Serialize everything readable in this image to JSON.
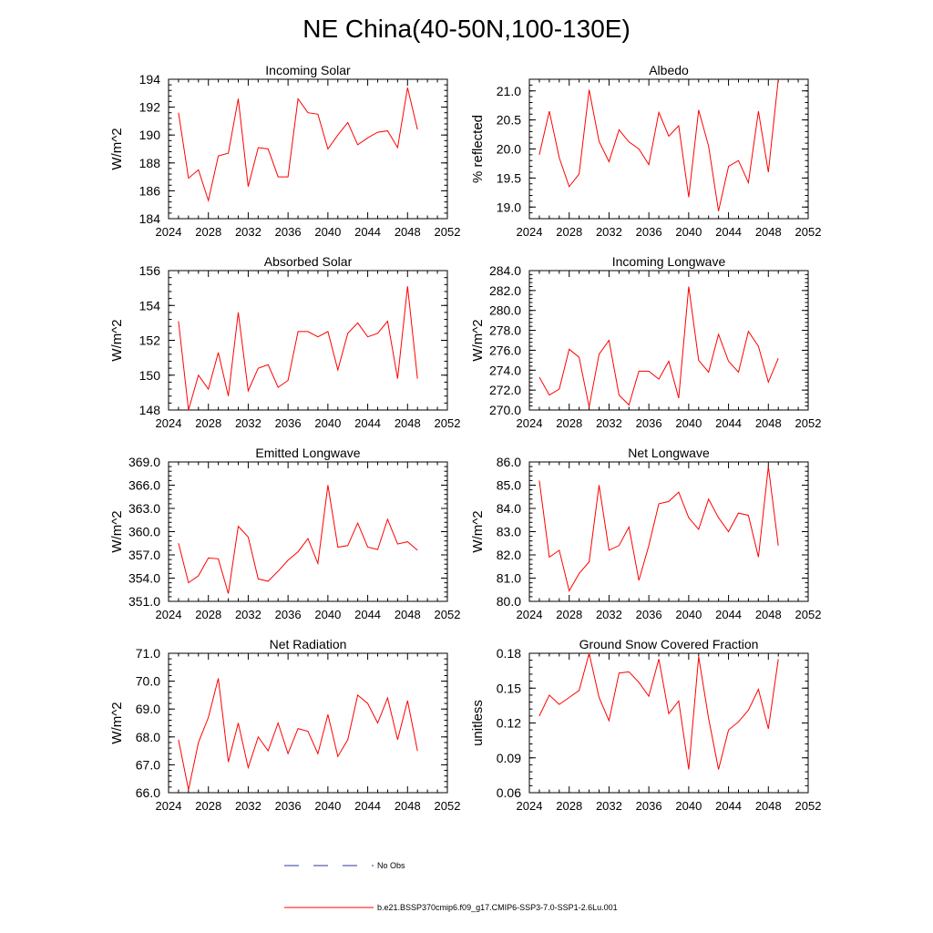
{
  "figure": {
    "title": "NE China(40-50N,100-130E)"
  },
  "legend": {
    "obs_label": "No Obs",
    "obs_color": "#2b3a9e",
    "model_label": "b.e21.BSSP370cmip6.f09_g17.CMIP6-SSP3-7.0-SSP1-2.6Lu.001",
    "model_color": "#ff0000"
  },
  "chart_data": [
    {
      "type": "line",
      "title": "Incoming Solar",
      "ylabel": "W/m^2",
      "xlim": [
        2024,
        2052
      ],
      "ylim": [
        184,
        194
      ],
      "xticks": [
        2024,
        2028,
        2032,
        2036,
        2040,
        2044,
        2048,
        2052
      ],
      "yticks": [
        "184",
        "186",
        "188",
        "190",
        "192",
        "194"
      ],
      "series": [
        {
          "color": "#ff0000",
          "x": [
            2025,
            2026,
            2027,
            2028,
            2029,
            2030,
            2031,
            2032,
            2033,
            2034,
            2035,
            2036,
            2037,
            2038,
            2039,
            2040,
            2041,
            2042,
            2043,
            2044,
            2045,
            2046,
            2047,
            2048,
            2049
          ],
          "y": [
            191.6,
            186.9,
            187.5,
            185.3,
            188.5,
            188.7,
            192.6,
            186.3,
            189.1,
            189.0,
            187.0,
            187.0,
            192.6,
            191.6,
            191.5,
            189.0,
            190.0,
            190.9,
            189.3,
            189.8,
            190.2,
            190.3,
            189.1,
            193.4,
            190.4
          ]
        }
      ]
    },
    {
      "type": "line",
      "title": "Albedo",
      "ylabel": "% reflected",
      "xlim": [
        2024,
        2052
      ],
      "ylim": [
        18.8,
        21.2
      ],
      "xticks": [
        2024,
        2028,
        2032,
        2036,
        2040,
        2044,
        2048,
        2052
      ],
      "yticks": [
        "19.0",
        "19.5",
        "20.0",
        "20.5",
        "21.0"
      ],
      "series": [
        {
          "color": "#ff0000",
          "x": [
            2025,
            2026,
            2027,
            2028,
            2029,
            2030,
            2031,
            2032,
            2033,
            2034,
            2035,
            2036,
            2037,
            2038,
            2039,
            2040,
            2041,
            2042,
            2043,
            2044,
            2045,
            2046,
            2047,
            2048,
            2049
          ],
          "y": [
            19.9,
            20.65,
            19.85,
            19.35,
            19.57,
            21.02,
            20.13,
            19.78,
            20.33,
            20.12,
            20.0,
            19.73,
            20.63,
            20.22,
            20.4,
            19.17,
            20.67,
            20.05,
            18.93,
            19.7,
            19.8,
            19.42,
            20.65,
            19.6,
            21.2
          ]
        }
      ]
    },
    {
      "type": "line",
      "title": "Absorbed Solar",
      "ylabel": "W/m^2",
      "xlim": [
        2024,
        2052
      ],
      "ylim": [
        148,
        156
      ],
      "xticks": [
        2024,
        2028,
        2032,
        2036,
        2040,
        2044,
        2048,
        2052
      ],
      "yticks": [
        "148",
        "150",
        "152",
        "154",
        "156"
      ],
      "series": [
        {
          "color": "#ff0000",
          "x": [
            2025,
            2026,
            2027,
            2028,
            2029,
            2030,
            2031,
            2032,
            2033,
            2034,
            2035,
            2036,
            2037,
            2038,
            2039,
            2040,
            2041,
            2042,
            2043,
            2044,
            2045,
            2046,
            2047,
            2048,
            2049
          ],
          "y": [
            153.1,
            148.0,
            150.0,
            149.2,
            151.3,
            148.8,
            153.6,
            149.1,
            150.4,
            150.6,
            149.3,
            149.7,
            152.5,
            152.5,
            152.2,
            152.5,
            150.3,
            152.4,
            153.0,
            152.2,
            152.4,
            153.1,
            149.8,
            155.1,
            149.8
          ]
        }
      ]
    },
    {
      "type": "line",
      "title": "Incoming Longwave",
      "ylabel": "W/m^2",
      "xlim": [
        2024,
        2052
      ],
      "ylim": [
        270,
        284
      ],
      "xticks": [
        2024,
        2028,
        2032,
        2036,
        2040,
        2044,
        2048,
        2052
      ],
      "yticks": [
        "270.0",
        "272.0",
        "274.0",
        "276.0",
        "278.0",
        "280.0",
        "282.0",
        "284.0"
      ],
      "series": [
        {
          "color": "#ff0000",
          "x": [
            2025,
            2026,
            2027,
            2028,
            2029,
            2030,
            2031,
            2032,
            2033,
            2034,
            2035,
            2036,
            2037,
            2038,
            2039,
            2040,
            2041,
            2042,
            2043,
            2044,
            2045,
            2046,
            2047,
            2048,
            2049
          ],
          "y": [
            273.3,
            271.5,
            272.1,
            276.1,
            275.3,
            270.3,
            275.6,
            277.0,
            271.5,
            270.5,
            273.9,
            273.9,
            273.1,
            274.9,
            271.2,
            282.4,
            275.0,
            273.8,
            277.6,
            274.9,
            273.8,
            277.9,
            276.4,
            272.8,
            275.2
          ]
        }
      ]
    },
    {
      "type": "line",
      "title": "Emitted Longwave",
      "ylabel": "W/m^2",
      "xlim": [
        2024,
        2052
      ],
      "ylim": [
        351,
        369
      ],
      "xticks": [
        2024,
        2028,
        2032,
        2036,
        2040,
        2044,
        2048,
        2052
      ],
      "yticks": [
        "351.0",
        "354.0",
        "357.0",
        "360.0",
        "363.0",
        "366.0",
        "369.0"
      ],
      "series": [
        {
          "color": "#ff0000",
          "x": [
            2025,
            2026,
            2027,
            2028,
            2029,
            2030,
            2031,
            2032,
            2033,
            2034,
            2035,
            2036,
            2037,
            2038,
            2039,
            2040,
            2041,
            2042,
            2043,
            2044,
            2045,
            2046,
            2047,
            2048,
            2049
          ],
          "y": [
            358.5,
            353.4,
            354.3,
            356.6,
            356.5,
            352.0,
            360.7,
            359.3,
            353.9,
            353.6,
            354.9,
            356.3,
            357.4,
            359.1,
            355.9,
            366.0,
            358.0,
            358.2,
            361.1,
            358.0,
            357.7,
            361.6,
            358.4,
            358.7,
            357.6
          ]
        }
      ]
    },
    {
      "type": "line",
      "title": "Net Longwave",
      "ylabel": "W/m^2",
      "xlim": [
        2024,
        2052
      ],
      "ylim": [
        80,
        86
      ],
      "xticks": [
        2024,
        2028,
        2032,
        2036,
        2040,
        2044,
        2048,
        2052
      ],
      "yticks": [
        "80.0",
        "81.0",
        "82.0",
        "83.0",
        "84.0",
        "85.0",
        "86.0"
      ],
      "series": [
        {
          "color": "#ff0000",
          "x": [
            2025,
            2026,
            2027,
            2028,
            2029,
            2030,
            2031,
            2032,
            2033,
            2034,
            2035,
            2036,
            2037,
            2038,
            2039,
            2040,
            2041,
            2042,
            2043,
            2044,
            2045,
            2046,
            2047,
            2048,
            2049
          ],
          "y": [
            85.2,
            81.9,
            82.2,
            80.45,
            81.2,
            81.7,
            85.0,
            82.2,
            82.4,
            83.2,
            80.9,
            82.4,
            84.2,
            84.3,
            84.7,
            83.6,
            83.1,
            84.4,
            83.6,
            83.0,
            83.8,
            83.7,
            81.9,
            85.8,
            82.4
          ]
        }
      ]
    },
    {
      "type": "line",
      "title": "Net Radiation",
      "ylabel": "W/m^2",
      "xlim": [
        2024,
        2052
      ],
      "ylim": [
        66,
        71
      ],
      "xticks": [
        2024,
        2028,
        2032,
        2036,
        2040,
        2044,
        2048,
        2052
      ],
      "yticks": [
        "66.0",
        "67.0",
        "68.0",
        "69.0",
        "70.0",
        "71.0"
      ],
      "series": [
        {
          "color": "#ff0000",
          "x": [
            2025,
            2026,
            2027,
            2028,
            2029,
            2030,
            2031,
            2032,
            2033,
            2034,
            2035,
            2036,
            2037,
            2038,
            2039,
            2040,
            2041,
            2042,
            2043,
            2044,
            2045,
            2046,
            2047,
            2048,
            2049
          ],
          "y": [
            67.9,
            66.1,
            67.8,
            68.7,
            70.1,
            67.1,
            68.5,
            66.9,
            68.0,
            67.5,
            68.5,
            67.4,
            68.3,
            68.2,
            67.4,
            68.8,
            67.3,
            67.9,
            69.5,
            69.2,
            68.5,
            69.4,
            67.9,
            69.3,
            67.5
          ]
        }
      ]
    },
    {
      "type": "line",
      "title": "Ground Snow Covered Fraction",
      "ylabel": "unitless",
      "xlim": [
        2024,
        2052
      ],
      "ylim": [
        0.06,
        0.18
      ],
      "xticks": [
        2024,
        2028,
        2032,
        2036,
        2040,
        2044,
        2048,
        2052
      ],
      "yticks": [
        "0.06",
        "0.09",
        "0.12",
        "0.15",
        "0.18"
      ],
      "series": [
        {
          "color": "#ff0000",
          "x": [
            2025,
            2026,
            2027,
            2028,
            2029,
            2030,
            2031,
            2032,
            2033,
            2034,
            2035,
            2036,
            2037,
            2038,
            2039,
            2040,
            2041,
            2042,
            2043,
            2044,
            2045,
            2046,
            2047,
            2048,
            2049
          ],
          "y": [
            0.126,
            0.144,
            0.136,
            0.142,
            0.148,
            0.18,
            0.142,
            0.122,
            0.163,
            0.164,
            0.155,
            0.143,
            0.175,
            0.128,
            0.139,
            0.08,
            0.177,
            0.124,
            0.08,
            0.114,
            0.121,
            0.131,
            0.149,
            0.115,
            0.175
          ]
        }
      ]
    }
  ]
}
